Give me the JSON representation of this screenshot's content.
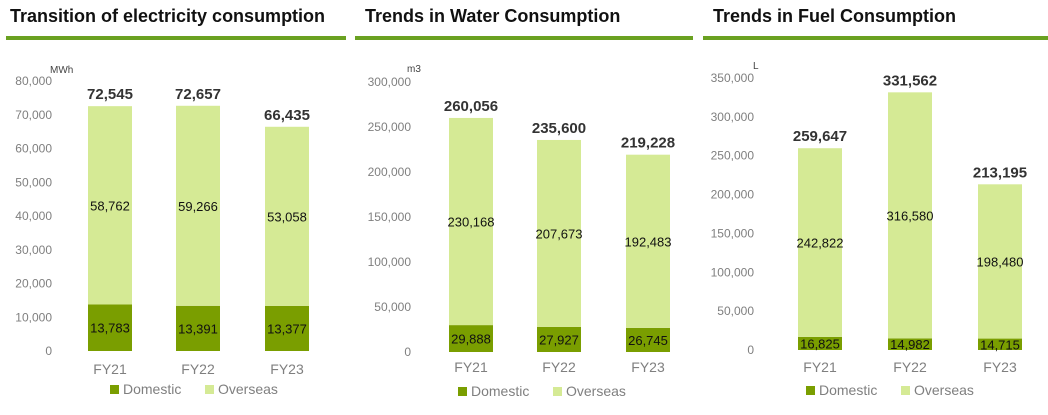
{
  "colors": {
    "domestic": "#7a9e00",
    "overseas": "#d5ea95",
    "rule": "#6aa121",
    "axis_text": "#7f7f7f"
  },
  "panels": [
    {
      "title": "Transition of electricity consumption"
    },
    {
      "title": "Trends in Water Consumption"
    },
    {
      "title": "Trends in Fuel Consumption"
    }
  ],
  "chart_data": [
    {
      "type": "bar",
      "stacked": true,
      "title": "Transition of electricity consumption",
      "unit": "MWh",
      "categories": [
        "FY21",
        "FY22",
        "FY23"
      ],
      "series": [
        {
          "name": "Domestic",
          "values": [
            13783,
            13391,
            13377
          ],
          "labels": [
            "13,783",
            "13,391",
            "13,377"
          ]
        },
        {
          "name": "Overseas",
          "values": [
            58762,
            59266,
            53058
          ],
          "labels": [
            "58,762",
            "59,266",
            "53,058"
          ]
        }
      ],
      "totals": [
        72545,
        72657,
        66435
      ],
      "total_labels": [
        "72,545",
        "72,657",
        "66,435"
      ],
      "ylim": [
        0,
        80000
      ],
      "yticks": [
        0,
        10000,
        20000,
        30000,
        40000,
        50000,
        60000,
        70000,
        80000
      ],
      "ytick_labels": [
        "0",
        "10,000",
        "20,000",
        "30,000",
        "40,000",
        "50,000",
        "60,000",
        "70,000",
        "80,000"
      ],
      "legend": "bottom",
      "grid": false
    },
    {
      "type": "bar",
      "stacked": true,
      "title": "Trends in Water Consumption",
      "unit": "m3",
      "categories": [
        "FY21",
        "FY22",
        "FY23"
      ],
      "series": [
        {
          "name": "Domestic",
          "values": [
            29888,
            27927,
            26745
          ],
          "labels": [
            "29,888",
            "27,927",
            "26,745"
          ]
        },
        {
          "name": "Overseas",
          "values": [
            230168,
            207673,
            192483
          ],
          "labels": [
            "230,168",
            "207,673",
            "192,483"
          ]
        }
      ],
      "totals": [
        260056,
        235600,
        219228
      ],
      "total_labels": [
        "260,056",
        "235,600",
        "219,228"
      ],
      "ylim": [
        0,
        300000
      ],
      "yticks": [
        0,
        50000,
        100000,
        150000,
        200000,
        250000,
        300000
      ],
      "ytick_labels": [
        "0",
        "50,000",
        "100,000",
        "150,000",
        "200,000",
        "250,000",
        "300,000"
      ],
      "legend": "bottom",
      "grid": false
    },
    {
      "type": "bar",
      "stacked": true,
      "title": "Trends in Fuel Consumption",
      "unit": "L",
      "categories": [
        "FY21",
        "FY22",
        "FY23"
      ],
      "series": [
        {
          "name": "Domestic",
          "values": [
            16825,
            14982,
            14715
          ],
          "labels": [
            "16,825",
            "14,982",
            "14,715"
          ]
        },
        {
          "name": "Overseas",
          "values": [
            242822,
            316580,
            198480
          ],
          "labels": [
            "242,822",
            "316,580",
            "198,480"
          ]
        }
      ],
      "totals": [
        259647,
        331562,
        213195
      ],
      "total_labels": [
        "259,647",
        "331,562",
        "213,195"
      ],
      "ylim": [
        0,
        350000
      ],
      "yticks": [
        0,
        50000,
        100000,
        150000,
        200000,
        250000,
        300000,
        350000
      ],
      "ytick_labels": [
        "0",
        "50,000",
        "100,000",
        "150,000",
        "200,000",
        "250,000",
        "300,000",
        "350,000"
      ],
      "legend": "bottom",
      "grid": false
    }
  ]
}
